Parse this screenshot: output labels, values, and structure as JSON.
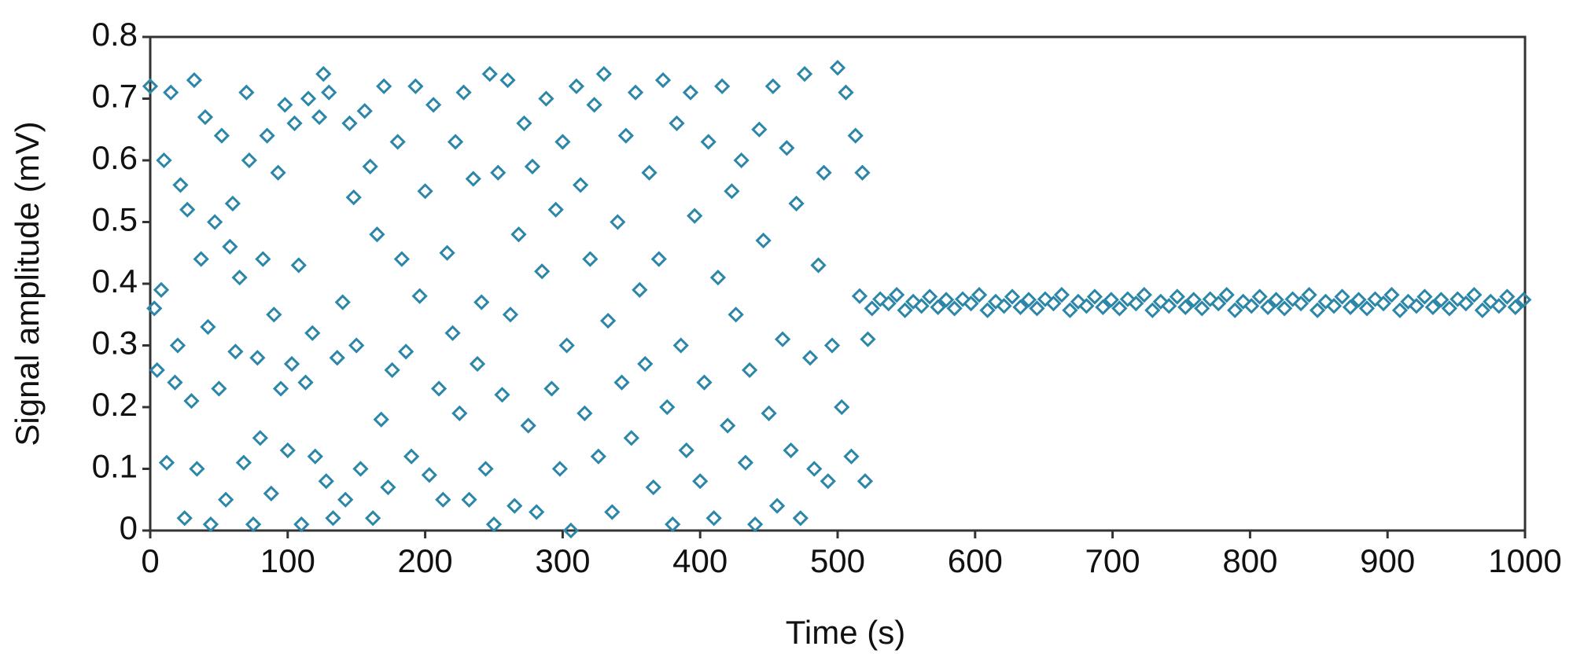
{
  "chart_data": {
    "type": "scatter",
    "xlabel": "Time (s)",
    "ylabel": "Signal amplitude (mV)",
    "color": "#2b86a8",
    "xlim": [
      0,
      1000
    ],
    "ylim": [
      0,
      0.8
    ],
    "xticks": [
      0,
      100,
      200,
      300,
      400,
      500,
      600,
      700,
      800,
      900,
      1000
    ],
    "yticks": [
      0,
      0.1,
      0.2,
      0.3,
      0.4,
      0.5,
      0.6,
      0.7,
      0.8
    ],
    "x": [
      0,
      3,
      5,
      8,
      10,
      12,
      15,
      18,
      20,
      22,
      25,
      27,
      30,
      32,
      34,
      37,
      40,
      42,
      44,
      47,
      50,
      52,
      55,
      58,
      60,
      62,
      65,
      68,
      70,
      72,
      75,
      78,
      80,
      82,
      85,
      88,
      90,
      93,
      95,
      98,
      100,
      103,
      105,
      108,
      110,
      113,
      115,
      118,
      120,
      123,
      126,
      128,
      130,
      133,
      136,
      140,
      142,
      145,
      148,
      150,
      153,
      156,
      160,
      162,
      165,
      168,
      170,
      173,
      176,
      180,
      183,
      186,
      190,
      193,
      196,
      200,
      203,
      206,
      210,
      213,
      216,
      220,
      222,
      225,
      228,
      232,
      235,
      238,
      241,
      244,
      247,
      250,
      253,
      256,
      260,
      262,
      265,
      268,
      272,
      275,
      278,
      281,
      285,
      288,
      292,
      295,
      298,
      300,
      303,
      306,
      310,
      313,
      316,
      320,
      323,
      326,
      330,
      333,
      336,
      340,
      343,
      346,
      350,
      353,
      356,
      360,
      363,
      366,
      370,
      373,
      376,
      380,
      383,
      386,
      390,
      393,
      396,
      400,
      403,
      406,
      410,
      413,
      416,
      420,
      423,
      426,
      430,
      433,
      436,
      440,
      443,
      446,
      450,
      453,
      456,
      460,
      463,
      466,
      470,
      473,
      476,
      480,
      483,
      486,
      490,
      493,
      496,
      500,
      503,
      506,
      510,
      513,
      516,
      518,
      520,
      522,
      525,
      531,
      537,
      543,
      549,
      555,
      561,
      567,
      573,
      579,
      585,
      591,
      597,
      603,
      609,
      615,
      621,
      627,
      633,
      639,
      645,
      651,
      657,
      663,
      669,
      675,
      681,
      687,
      693,
      699,
      705,
      711,
      717,
      723,
      729,
      735,
      741,
      747,
      753,
      759,
      765,
      771,
      777,
      783,
      789,
      795,
      801,
      807,
      813,
      819,
      825,
      831,
      837,
      843,
      849,
      855,
      861,
      867,
      873,
      879,
      885,
      891,
      897,
      903,
      909,
      915,
      921,
      927,
      933,
      939,
      945,
      951,
      957,
      963,
      969,
      975,
      981,
      987,
      993,
      999
    ],
    "values": [
      0.72,
      0.36,
      0.26,
      0.39,
      0.6,
      0.11,
      0.71,
      0.24,
      0.3,
      0.56,
      0.02,
      0.52,
      0.21,
      0.73,
      0.1,
      0.44,
      0.67,
      0.33,
      0.01,
      0.5,
      0.23,
      0.64,
      0.05,
      0.46,
      0.53,
      0.29,
      0.41,
      0.11,
      0.71,
      0.6,
      0.01,
      0.28,
      0.15,
      0.44,
      0.64,
      0.06,
      0.35,
      0.58,
      0.23,
      0.69,
      0.13,
      0.27,
      0.66,
      0.43,
      0.01,
      0.24,
      0.7,
      0.32,
      0.12,
      0.67,
      0.74,
      0.08,
      0.71,
      0.02,
      0.28,
      0.37,
      0.05,
      0.66,
      0.54,
      0.3,
      0.1,
      0.68,
      0.59,
      0.02,
      0.48,
      0.18,
      0.72,
      0.07,
      0.26,
      0.63,
      0.44,
      0.29,
      0.12,
      0.72,
      0.38,
      0.55,
      0.09,
      0.69,
      0.23,
      0.05,
      0.45,
      0.32,
      0.63,
      0.19,
      0.71,
      0.05,
      0.57,
      0.27,
      0.37,
      0.1,
      0.74,
      0.01,
      0.58,
      0.22,
      0.73,
      0.35,
      0.04,
      0.48,
      0.66,
      0.17,
      0.59,
      0.03,
      0.42,
      0.7,
      0.23,
      0.52,
      0.1,
      0.63,
      0.3,
      0.0,
      0.72,
      0.56,
      0.19,
      0.44,
      0.69,
      0.12,
      0.74,
      0.34,
      0.03,
      0.5,
      0.24,
      0.64,
      0.15,
      0.71,
      0.39,
      0.27,
      0.58,
      0.07,
      0.44,
      0.73,
      0.2,
      0.01,
      0.66,
      0.3,
      0.13,
      0.71,
      0.51,
      0.08,
      0.24,
      0.63,
      0.02,
      0.41,
      0.72,
      0.17,
      0.55,
      0.35,
      0.6,
      0.11,
      0.26,
      0.01,
      0.65,
      0.47,
      0.19,
      0.72,
      0.04,
      0.31,
      0.62,
      0.13,
      0.53,
      0.02,
      0.74,
      0.28,
      0.1,
      0.43,
      0.58,
      0.08,
      0.3,
      0.75,
      0.2,
      0.71,
      0.12,
      0.64,
      0.38,
      0.58,
      0.08,
      0.31,
      0.36,
      0.375,
      0.368,
      0.382,
      0.357,
      0.371,
      0.364,
      0.379,
      0.362,
      0.374,
      0.36,
      0.375,
      0.368,
      0.382,
      0.357,
      0.371,
      0.364,
      0.379,
      0.362,
      0.374,
      0.36,
      0.375,
      0.368,
      0.382,
      0.357,
      0.371,
      0.364,
      0.379,
      0.362,
      0.374,
      0.36,
      0.375,
      0.368,
      0.382,
      0.357,
      0.371,
      0.364,
      0.379,
      0.362,
      0.374,
      0.36,
      0.375,
      0.368,
      0.382,
      0.357,
      0.371,
      0.364,
      0.379,
      0.362,
      0.374,
      0.36,
      0.375,
      0.368,
      0.382,
      0.357,
      0.371,
      0.364,
      0.379,
      0.362,
      0.374,
      0.36,
      0.375,
      0.368,
      0.382,
      0.357,
      0.371,
      0.364,
      0.379,
      0.362,
      0.374,
      0.36,
      0.375,
      0.368,
      0.382,
      0.357,
      0.371,
      0.364,
      0.379,
      0.362,
      0.374
    ]
  }
}
